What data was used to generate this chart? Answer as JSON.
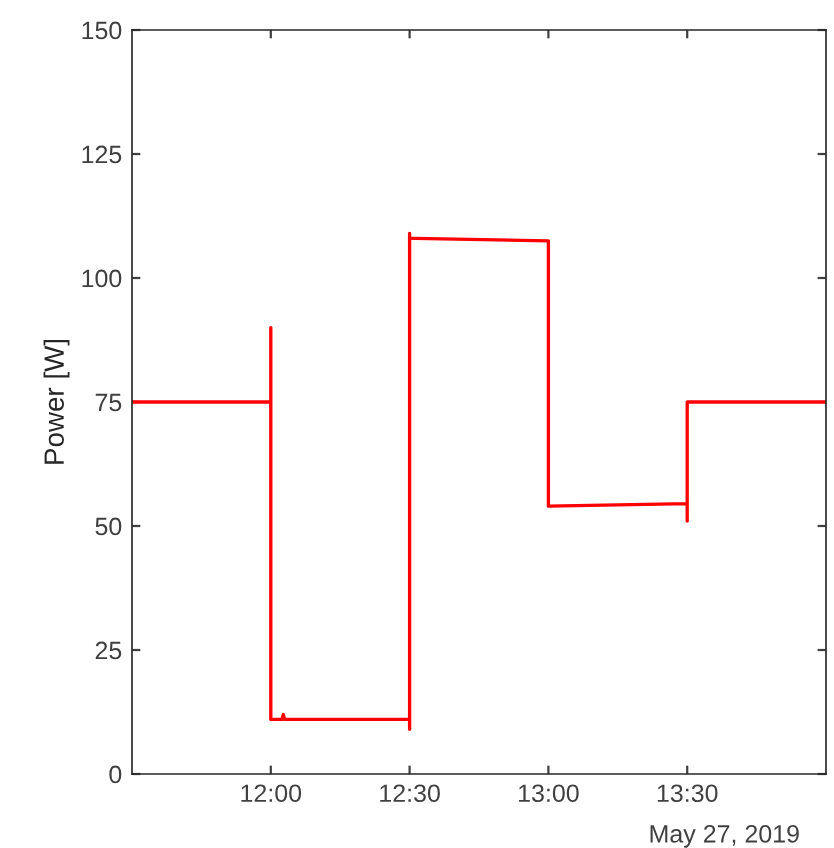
{
  "chart_data": {
    "type": "line",
    "ylabel": "Power [W]",
    "x": [
      11.5,
      12.0,
      12.0,
      12.0,
      12.0,
      12.04,
      12.045,
      12.05,
      12.5,
      12.5,
      12.5,
      12.5,
      12.52,
      13.0,
      13.0,
      13.0,
      13.5,
      13.5,
      13.5,
      13.5,
      14.0
    ],
    "series": [
      {
        "color": "#ff0000",
        "values": [
          75,
          75,
          90,
          75,
          11,
          11,
          12,
          11,
          11,
          9,
          109,
          108,
          108,
          107.5,
          54,
          54,
          54.5,
          51,
          54.5,
          75,
          75
        ]
      }
    ],
    "xlim": [
      11.5,
      14.0
    ],
    "ylim": [
      0,
      150
    ],
    "yticks": [
      0,
      25,
      50,
      75,
      100,
      125,
      150
    ],
    "xticks": [
      {
        "value": 12.0,
        "label": "12:00"
      },
      {
        "value": 12.5,
        "label": "12:30"
      },
      {
        "value": 13.0,
        "label": "13:00"
      },
      {
        "value": 13.5,
        "label": "13:30"
      }
    ],
    "annotations": [
      "May 27, 2019"
    ],
    "grid": false,
    "legend": false
  }
}
